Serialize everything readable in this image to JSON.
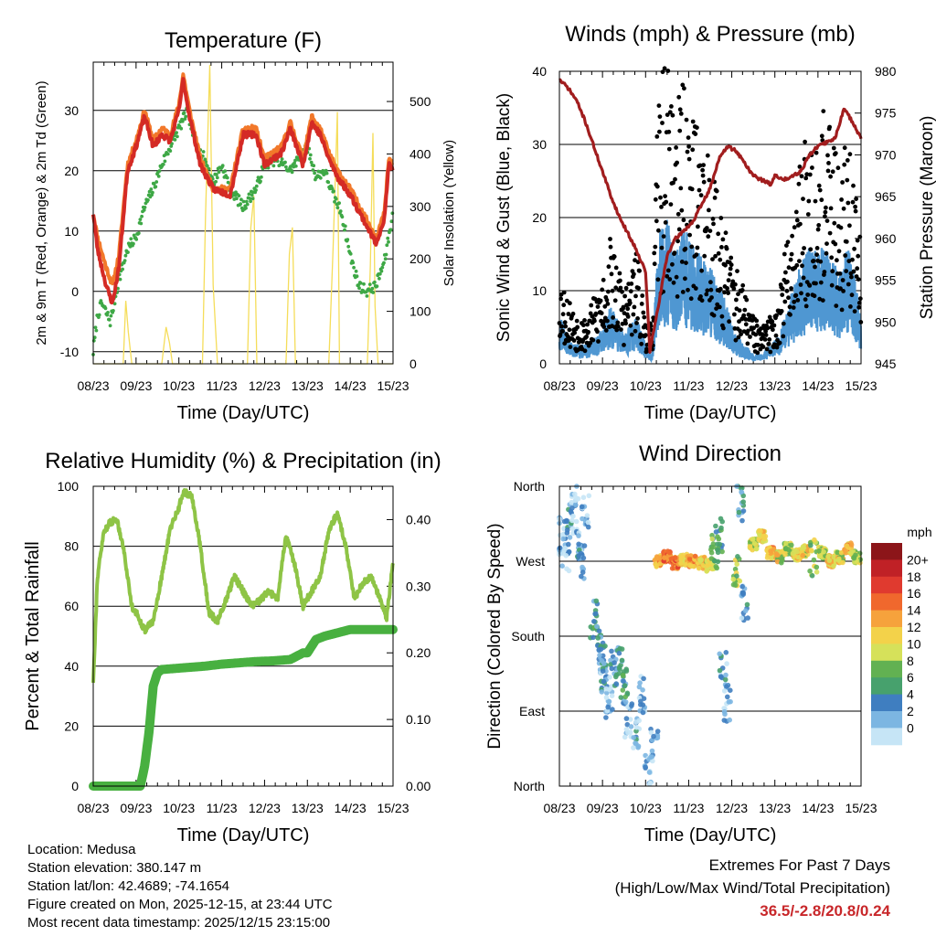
{
  "info": {
    "location": "Location: Medusa",
    "elevation": "Station elevation: 380.147 m",
    "latlon": "Station lat/lon: 42.4689; -74.1654",
    "created": "Figure created on Mon, 2025-12-15, at 23:44 UTC",
    "recent": "Most recent data timestamp: 2025/12/15 23:15:00"
  },
  "extremes": {
    "title": "Extremes For Past 7 Days",
    "subtitle": "(High/Low/Max Wind/Total Precipitation)",
    "values": "36.5/-2.8/20.8/0.24"
  },
  "colors": {
    "temp2m": "#d42a25",
    "temp9m": "#f2782a",
    "dewpoint": "#3ea846",
    "solar": "#f5dd5a",
    "gust": "#000000",
    "wind": "#4f97d2",
    "pressure": "#a11d1e",
    "rh": "#8ec446",
    "rain": "#48b040"
  },
  "chart_data": [
    {
      "type": "line",
      "title": "Temperature (F)",
      "xlabel": "Time (Day/UTC)",
      "ylabel": "2m & 9m T (Red, Orange) & 2m Td (Green)",
      "ylabel_right": "Solar Insolation (Yellow)",
      "x_ticks": [
        "08/23",
        "09/23",
        "10/23",
        "11/23",
        "12/23",
        "13/23",
        "14/23",
        "15/23"
      ],
      "x_domain": [
        0,
        7
      ],
      "ylim": [
        -12,
        38
      ],
      "y_ticks": [
        -10,
        0,
        10,
        20,
        30
      ],
      "ylim_right": [
        0,
        575
      ],
      "y_ticks_right": [
        0,
        100,
        200,
        300,
        400,
        500
      ],
      "series": [
        {
          "name": "2m T",
          "axis": "left",
          "x": [
            0,
            0.1,
            0.3,
            0.45,
            0.6,
            0.8,
            1.0,
            1.2,
            1.4,
            1.6,
            1.8,
            2.0,
            2.1,
            2.25,
            2.5,
            2.8,
            3.2,
            3.5,
            3.8,
            4.0,
            4.4,
            4.6,
            4.9,
            5.1,
            5.3,
            5.5,
            5.7,
            6.0,
            6.3,
            6.6,
            6.8,
            6.9,
            7.0
          ],
          "y": [
            13,
            7,
            1,
            -2,
            4,
            20,
            24,
            29,
            24,
            26,
            25,
            30,
            35,
            29,
            21,
            17,
            16,
            26,
            26,
            21,
            23,
            27,
            21,
            28,
            26,
            22,
            19,
            16,
            12,
            8,
            12,
            21,
            20
          ]
        },
        {
          "name": "9m T",
          "axis": "left",
          "x": [
            0,
            0.1,
            0.3,
            0.45,
            0.6,
            0.8,
            1.0,
            1.2,
            1.4,
            1.6,
            1.8,
            2.0,
            2.1,
            2.25,
            2.5,
            2.8,
            3.2,
            3.5,
            3.8,
            4.0,
            4.4,
            4.6,
            4.9,
            5.1,
            5.3,
            5.5,
            5.7,
            6.0,
            6.3,
            6.6,
            6.8,
            6.9,
            7.0
          ],
          "y": [
            13,
            9,
            4,
            1,
            6,
            21,
            25,
            30,
            25,
            27,
            26,
            31,
            36,
            30,
            22,
            17,
            17,
            27,
            27,
            22,
            24,
            28,
            22,
            29,
            27,
            23,
            20,
            17,
            13,
            9,
            13,
            22,
            21
          ]
        },
        {
          "name": "2m Td",
          "axis": "left",
          "x": [
            0,
            0.1,
            0.2,
            0.4,
            0.6,
            0.8,
            1.0,
            1.2,
            1.4,
            1.6,
            1.8,
            2.0,
            2.2,
            2.4,
            2.6,
            2.8,
            3.0,
            3.2,
            3.5,
            3.8,
            4.0,
            4.3,
            4.6,
            5.0,
            5.2,
            5.4,
            5.6,
            5.8,
            6.0,
            6.2,
            6.4,
            6.6,
            6.8,
            7.0
          ],
          "y": [
            -10,
            -4,
            -2,
            -5,
            2,
            7,
            9,
            14,
            17,
            21,
            24,
            27,
            30,
            24,
            22,
            18,
            21,
            17,
            14,
            17,
            21,
            22,
            20,
            24,
            19,
            20,
            16,
            13,
            6,
            1,
            0,
            1,
            5,
            13
          ]
        },
        {
          "name": "Solar Insolation",
          "axis": "right",
          "x": [
            0,
            0.7,
            0.76,
            0.82,
            0.9,
            1.6,
            1.7,
            1.78,
            1.85,
            2.55,
            2.62,
            2.72,
            2.8,
            2.9,
            3.6,
            3.68,
            3.75,
            3.82,
            4.5,
            4.58,
            4.65,
            4.72,
            5.5,
            5.6,
            5.7,
            5.75,
            6.4,
            6.47,
            6.53,
            6.58,
            6.65,
            7.0
          ],
          "y": [
            0,
            0,
            120,
            60,
            0,
            0,
            70,
            40,
            0,
            0,
            280,
            570,
            150,
            0,
            0,
            260,
            320,
            0,
            0,
            210,
            260,
            0,
            0,
            220,
            480,
            0,
            0,
            190,
            440,
            110,
            0,
            0
          ]
        }
      ]
    },
    {
      "type": "scatter",
      "title": "Winds (mph) & Pressure (mb)",
      "xlabel": "Time (Day/UTC)",
      "ylabel": "Sonic Wind & Gust (Blue, Black)",
      "ylabel_right": "Station Pressure (Maroon)",
      "x_ticks": [
        "08/23",
        "09/23",
        "10/23",
        "11/23",
        "12/23",
        "13/23",
        "14/23",
        "15/23"
      ],
      "x_domain": [
        0,
        7
      ],
      "ylim": [
        0,
        40
      ],
      "y_ticks": [
        0,
        10,
        20,
        30,
        40
      ],
      "ylim_right": [
        945,
        980
      ],
      "y_ticks_right": [
        945,
        950,
        955,
        960,
        965,
        970,
        975,
        980
      ],
      "series": [
        {
          "name": "Gust",
          "axis": "left",
          "x": [
            0,
            0.3,
            0.6,
            0.9,
            1.2,
            1.5,
            1.8,
            2.0,
            2.15,
            2.3,
            2.5,
            2.7,
            2.9,
            3.1,
            3.3,
            3.5,
            3.7,
            3.9,
            4.1,
            4.3,
            4.5,
            4.7,
            4.9,
            5.1,
            5.3,
            5.5,
            5.7,
            5.9,
            6.1,
            6.3,
            6.5,
            6.7,
            6.9,
            7.0
          ],
          "y": [
            10,
            6,
            5,
            8,
            14,
            8,
            12,
            5,
            4,
            30,
            33,
            27,
            30,
            27,
            25,
            22,
            18,
            14,
            10,
            8,
            5,
            4,
            5,
            8,
            14,
            20,
            24,
            28,
            27,
            25,
            22,
            26,
            18,
            12
          ]
        },
        {
          "name": "Wind",
          "axis": "left",
          "x": [
            0,
            0.3,
            0.6,
            0.9,
            1.2,
            1.5,
            1.8,
            2.0,
            2.15,
            2.3,
            2.5,
            2.7,
            2.9,
            3.1,
            3.3,
            3.5,
            3.7,
            3.9,
            4.1,
            4.3,
            4.5,
            4.7,
            4.9,
            5.1,
            5.3,
            5.5,
            5.7,
            5.9,
            6.1,
            6.3,
            6.5,
            6.7,
            6.9,
            7.0
          ],
          "y": [
            5,
            2,
            2,
            3,
            6,
            3,
            5,
            2,
            1,
            13,
            15,
            12,
            14,
            12,
            11,
            10,
            8,
            6,
            3,
            2,
            1,
            1,
            2,
            3,
            6,
            9,
            11,
            13,
            12,
            11,
            9,
            12,
            8,
            5
          ]
        },
        {
          "name": "Station Pressure",
          "axis": "right",
          "x": [
            0,
            0.2,
            0.4,
            0.6,
            0.8,
            1.0,
            1.2,
            1.4,
            1.6,
            1.8,
            2.0,
            2.1,
            2.3,
            2.5,
            2.7,
            2.9,
            3.1,
            3.3,
            3.5,
            3.7,
            3.9,
            4.1,
            4.3,
            4.5,
            4.7,
            4.9,
            5.0,
            5.2,
            5.4,
            5.6,
            5.8,
            6.0,
            6.2,
            6.4,
            6.6,
            6.8,
            7.0
          ],
          "y": [
            979,
            978,
            976.5,
            974,
            971,
            968,
            965,
            962.5,
            960.5,
            958.5,
            956,
            946.5,
            952,
            958,
            960,
            961,
            962,
            964,
            966,
            969.5,
            971,
            970.5,
            969,
            967.5,
            967,
            966.5,
            967.5,
            967,
            967.5,
            968,
            970,
            971,
            971.5,
            972,
            975.5,
            974,
            972
          ]
        }
      ]
    },
    {
      "type": "line",
      "title": "Relative Humidity (%) & Precipitation (in)",
      "xlabel": "Time (Day/UTC)",
      "ylabel": "Percent & Total Rainfall",
      "x_ticks": [
        "08/23",
        "09/23",
        "10/23",
        "11/23",
        "12/23",
        "13/23",
        "14/23",
        "15/23"
      ],
      "x_domain": [
        0,
        7
      ],
      "ylim": [
        0,
        100
      ],
      "y_ticks": [
        0,
        20,
        40,
        60,
        80,
        100
      ],
      "ylim_right": [
        0,
        0.45
      ],
      "y_ticks_right": [
        "0.00",
        "0.10",
        "0.20",
        "0.30",
        "0.40"
      ],
      "series": [
        {
          "name": "Relative Humidity",
          "axis": "left",
          "x": [
            0,
            0.1,
            0.25,
            0.4,
            0.55,
            0.7,
            0.9,
            1.0,
            1.2,
            1.4,
            1.6,
            1.8,
            2.0,
            2.1,
            2.3,
            2.5,
            2.7,
            2.9,
            3.1,
            3.3,
            3.5,
            3.7,
            3.9,
            4.1,
            4.3,
            4.5,
            4.7,
            4.9,
            5.1,
            5.3,
            5.5,
            5.7,
            5.9,
            6.1,
            6.3,
            6.5,
            6.7,
            6.85,
            7.0
          ],
          "y": [
            35,
            70,
            85,
            88,
            89,
            80,
            60,
            58,
            52,
            55,
            70,
            86,
            93,
            98,
            97,
            80,
            58,
            55,
            62,
            70,
            65,
            60,
            62,
            65,
            62,
            84,
            74,
            60,
            65,
            70,
            85,
            91,
            80,
            62,
            68,
            70,
            62,
            56,
            75
          ]
        },
        {
          "name": "Total Precipitation",
          "axis": "right",
          "x": [
            0,
            1.1,
            1.2,
            1.3,
            1.4,
            1.5,
            1.6,
            1.8,
            2.2,
            2.6,
            3.0,
            3.4,
            3.8,
            4.2,
            4.6,
            4.9,
            5.0,
            5.1,
            5.2,
            5.4,
            6.0,
            7.0
          ],
          "y": [
            0.0,
            0.0,
            0.03,
            0.08,
            0.15,
            0.17,
            0.175,
            0.176,
            0.178,
            0.18,
            0.183,
            0.185,
            0.187,
            0.188,
            0.19,
            0.2,
            0.2,
            0.21,
            0.22,
            0.225,
            0.235,
            0.235
          ]
        }
      ]
    },
    {
      "type": "scatter",
      "title": "Wind Direction",
      "xlabel": "Time (Day/UTC)",
      "ylabel": "Direction (Colored By Speed)",
      "x_ticks": [
        "08/23",
        "09/23",
        "10/23",
        "11/23",
        "12/23",
        "13/23",
        "14/23",
        "15/23"
      ],
      "x_domain": [
        0,
        7
      ],
      "y_ticks": [
        "North",
        "West",
        "South",
        "East",
        "North"
      ],
      "y_tick_values": [
        360,
        270,
        180,
        90,
        0
      ],
      "ylim": [
        0,
        360
      ],
      "colorbar_title": "mph",
      "colorbar_labels": [
        "20+",
        "18",
        "16",
        "14",
        "12",
        "10",
        "8",
        "6",
        "4",
        "2",
        "0"
      ],
      "colorbar_colors": [
        "#8c1519",
        "#c02126",
        "#e03a2f",
        "#f0682d",
        "#f6a23c",
        "#f3d24a",
        "#d6e15a",
        "#62b152",
        "#47a16d",
        "#3f7ec0",
        "#7cb6e2",
        "#c6e5f6"
      ],
      "series": [
        {
          "name": "Direction",
          "x": [
            0.05,
            0.15,
            0.25,
            0.35,
            0.45,
            0.5,
            0.6,
            0.8,
            0.95,
            1.0,
            1.05,
            1.15,
            1.25,
            1.4,
            1.5,
            1.6,
            1.8,
            1.9,
            2.05,
            2.2,
            2.3,
            2.5,
            2.7,
            2.9,
            3.1,
            3.3,
            3.5,
            3.6,
            3.7,
            3.8,
            3.9,
            4.1,
            4.2,
            4.3,
            4.5,
            4.7,
            4.9,
            5.1,
            5.3,
            5.5,
            5.7,
            5.9,
            6.1,
            6.3,
            6.5,
            6.7,
            6.9
          ],
          "y": [
            300,
            280,
            320,
            340,
            290,
            270,
            330,
            200,
            170,
            150,
            130,
            100,
            140,
            150,
            120,
            80,
            60,
            110,
            20,
            50,
            270,
            275,
            268,
            272,
            270,
            268,
            265,
            280,
            300,
            140,
            100,
            260,
            340,
            220,
            290,
            300,
            280,
            275,
            285,
            278,
            282,
            275,
            280,
            270,
            275,
            285,
            275
          ],
          "speed": [
            2,
            1,
            3,
            1,
            2,
            4,
            1,
            5,
            4,
            3,
            4,
            2,
            3,
            4,
            5,
            2,
            3,
            2,
            1,
            2,
            14,
            16,
            15,
            12,
            14,
            13,
            10,
            7,
            6,
            3,
            2,
            9,
            4,
            3,
            10,
            12,
            13,
            11,
            10,
            12,
            11,
            9,
            10,
            12,
            11,
            13,
            10
          ]
        }
      ]
    }
  ]
}
